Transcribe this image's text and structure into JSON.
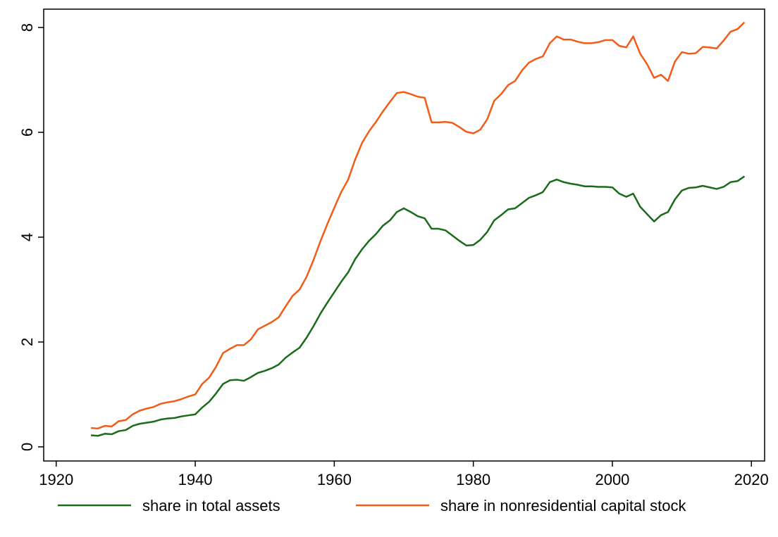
{
  "chart_data": {
    "type": "line",
    "x": [
      1925,
      1926,
      1927,
      1928,
      1929,
      1930,
      1931,
      1932,
      1933,
      1934,
      1935,
      1936,
      1937,
      1938,
      1939,
      1940,
      1941,
      1942,
      1943,
      1944,
      1945,
      1946,
      1947,
      1948,
      1949,
      1950,
      1951,
      1952,
      1953,
      1954,
      1955,
      1956,
      1957,
      1958,
      1959,
      1960,
      1961,
      1962,
      1963,
      1964,
      1965,
      1966,
      1967,
      1968,
      1969,
      1970,
      1971,
      1972,
      1973,
      1974,
      1975,
      1976,
      1977,
      1978,
      1979,
      1980,
      1981,
      1982,
      1983,
      1984,
      1985,
      1986,
      1987,
      1988,
      1989,
      1990,
      1991,
      1992,
      1993,
      1994,
      1995,
      1996,
      1997,
      1998,
      1999,
      2000,
      2001,
      2002,
      2003,
      2004,
      2005,
      2006,
      2007,
      2008,
      2009,
      2010,
      2011,
      2012,
      2013,
      2014,
      2015,
      2016,
      2017,
      2018,
      2019
    ],
    "series": [
      {
        "name": "share in total assets",
        "color": "#1a6b1a",
        "values": [
          0.22,
          0.21,
          0.25,
          0.24,
          0.3,
          0.32,
          0.4,
          0.44,
          0.46,
          0.48,
          0.52,
          0.54,
          0.55,
          0.58,
          0.6,
          0.62,
          0.75,
          0.86,
          1.02,
          1.2,
          1.27,
          1.28,
          1.26,
          1.33,
          1.41,
          1.45,
          1.5,
          1.57,
          1.7,
          1.8,
          1.89,
          2.08,
          2.3,
          2.54,
          2.75,
          2.95,
          3.15,
          3.33,
          3.58,
          3.77,
          3.93,
          4.06,
          4.22,
          4.32,
          4.48,
          4.55,
          4.48,
          4.4,
          4.36,
          4.16,
          4.16,
          4.13,
          4.03,
          3.93,
          3.84,
          3.85,
          3.95,
          4.1,
          4.32,
          4.42,
          4.53,
          4.55,
          4.65,
          4.75,
          4.8,
          4.86,
          5.05,
          5.1,
          5.05,
          5.02,
          5.0,
          4.97,
          4.97,
          4.96,
          4.96,
          4.95,
          4.83,
          4.77,
          4.83,
          4.58,
          4.44,
          4.3,
          4.42,
          4.48,
          4.72,
          4.89,
          4.94,
          4.95,
          4.98,
          4.95,
          4.92,
          4.96,
          5.05,
          5.07,
          5.16
        ]
      },
      {
        "name": "share in nonresidential capital stock",
        "color": "#f25c19",
        "values": [
          0.36,
          0.35,
          0.4,
          0.39,
          0.49,
          0.51,
          0.62,
          0.69,
          0.73,
          0.76,
          0.82,
          0.85,
          0.87,
          0.91,
          0.96,
          1.0,
          1.2,
          1.32,
          1.53,
          1.79,
          1.87,
          1.94,
          1.94,
          2.05,
          2.24,
          2.31,
          2.38,
          2.47,
          2.68,
          2.88,
          3.0,
          3.24,
          3.56,
          3.92,
          4.25,
          4.56,
          4.86,
          5.1,
          5.48,
          5.8,
          6.02,
          6.2,
          6.4,
          6.58,
          6.75,
          6.77,
          6.73,
          6.68,
          6.66,
          6.19,
          6.19,
          6.2,
          6.18,
          6.1,
          6.01,
          5.98,
          6.05,
          6.25,
          6.6,
          6.73,
          6.9,
          6.98,
          7.18,
          7.33,
          7.4,
          7.45,
          7.7,
          7.83,
          7.77,
          7.77,
          7.73,
          7.7,
          7.7,
          7.72,
          7.76,
          7.76,
          7.65,
          7.62,
          7.83,
          7.5,
          7.3,
          7.04,
          7.1,
          6.98,
          7.35,
          7.53,
          7.5,
          7.51,
          7.63,
          7.62,
          7.6,
          7.75,
          7.92,
          7.97,
          8.1
        ]
      }
    ],
    "xlim": [
      1918.2,
      2021.9
    ],
    "xticks": [
      1920,
      1940,
      1960,
      1980,
      2000,
      2020
    ],
    "ylim": [
      -0.27,
      8.35
    ],
    "yticks": [
      0,
      2,
      4,
      6,
      8
    ]
  }
}
